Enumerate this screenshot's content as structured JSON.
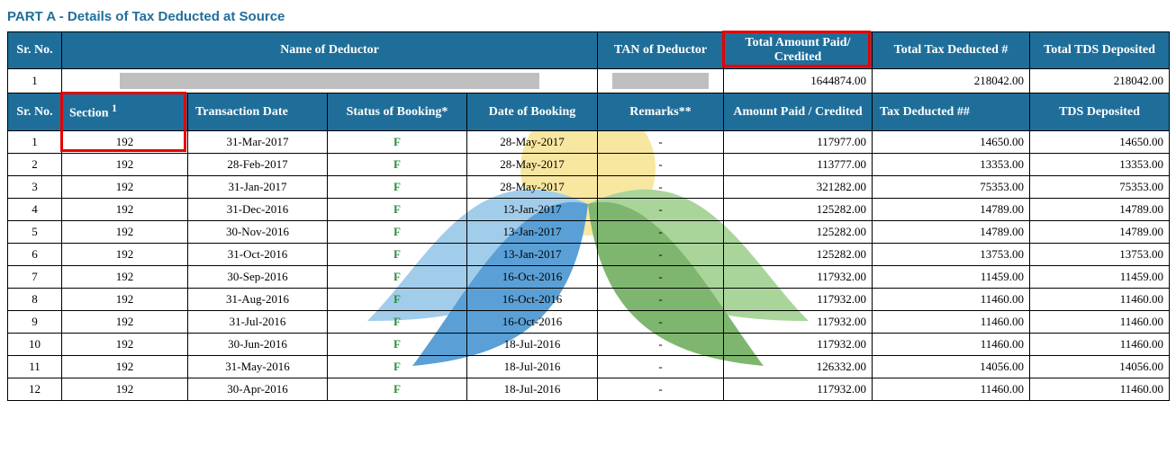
{
  "title": "PART A - Details of Tax Deducted at Source",
  "title_color": "#1f6e9a",
  "header_bg": "#1f6e9a",
  "status_color": "#2a8f3a",
  "redact_color": "#bfbfbf",
  "red_highlight": "#e60000",
  "summary_headers": {
    "sr": "Sr. No.",
    "name": "Name of Deductor",
    "tan": "TAN of Deductor",
    "total_paid": "Total Amount Paid/ Credited",
    "total_ded": "Total Tax Deducted #",
    "total_dep": "Total TDS Deposited"
  },
  "summary_rows": [
    {
      "sr": "1",
      "total_paid": "1644874.00",
      "total_ded": "218042.00",
      "total_dep": "218042.00"
    }
  ],
  "detail_headers": {
    "sr": "Sr. No.",
    "section": "Section ",
    "section_sup": "1",
    "trans_date": "Transaction Date",
    "status": "Status of Booking*",
    "book_date": "Date of Booking",
    "remarks": "Remarks**",
    "amount": "Amount Paid / Credited",
    "tax": "Tax Deducted ##",
    "dep": "TDS Deposited"
  },
  "rows": [
    {
      "sr": "1",
      "section": "192",
      "trans_date": "31-Mar-2017",
      "status": "F",
      "book_date": "28-May-2017",
      "remarks": "-",
      "amount": "117977.00",
      "tax": "14650.00",
      "dep": "14650.00"
    },
    {
      "sr": "2",
      "section": "192",
      "trans_date": "28-Feb-2017",
      "status": "F",
      "book_date": "28-May-2017",
      "remarks": "-",
      "amount": "113777.00",
      "tax": "13353.00",
      "dep": "13353.00"
    },
    {
      "sr": "3",
      "section": "192",
      "trans_date": "31-Jan-2017",
      "status": "F",
      "book_date": "28-May-2017",
      "remarks": "-",
      "amount": "321282.00",
      "tax": "75353.00",
      "dep": "75353.00"
    },
    {
      "sr": "4",
      "section": "192",
      "trans_date": "31-Dec-2016",
      "status": "F",
      "book_date": "13-Jan-2017",
      "remarks": "-",
      "amount": "125282.00",
      "tax": "14789.00",
      "dep": "14789.00"
    },
    {
      "sr": "5",
      "section": "192",
      "trans_date": "30-Nov-2016",
      "status": "F",
      "book_date": "13-Jan-2017",
      "remarks": "-",
      "amount": "125282.00",
      "tax": "14789.00",
      "dep": "14789.00"
    },
    {
      "sr": "6",
      "section": "192",
      "trans_date": "31-Oct-2016",
      "status": "F",
      "book_date": "13-Jan-2017",
      "remarks": "-",
      "amount": "125282.00",
      "tax": "13753.00",
      "dep": "13753.00"
    },
    {
      "sr": "7",
      "section": "192",
      "trans_date": "30-Sep-2016",
      "status": "F",
      "book_date": "16-Oct-2016",
      "remarks": "-",
      "amount": "117932.00",
      "tax": "11459.00",
      "dep": "11459.00"
    },
    {
      "sr": "8",
      "section": "192",
      "trans_date": "31-Aug-2016",
      "status": "F",
      "book_date": "16-Oct-2016",
      "remarks": "-",
      "amount": "117932.00",
      "tax": "11460.00",
      "dep": "11460.00"
    },
    {
      "sr": "9",
      "section": "192",
      "trans_date": "31-Jul-2016",
      "status": "F",
      "book_date": "16-Oct-2016",
      "remarks": "-",
      "amount": "117932.00",
      "tax": "11460.00",
      "dep": "11460.00"
    },
    {
      "sr": "10",
      "section": "192",
      "trans_date": "30-Jun-2016",
      "status": "F",
      "book_date": "18-Jul-2016",
      "remarks": "-",
      "amount": "117932.00",
      "tax": "11460.00",
      "dep": "11460.00"
    },
    {
      "sr": "11",
      "section": "192",
      "trans_date": "31-May-2016",
      "status": "F",
      "book_date": "18-Jul-2016",
      "remarks": "-",
      "amount": "126332.00",
      "tax": "14056.00",
      "dep": "14056.00"
    },
    {
      "sr": "12",
      "section": "192",
      "trans_date": "30-Apr-2016",
      "status": "F",
      "book_date": "18-Jul-2016",
      "remarks": "-",
      "amount": "117932.00",
      "tax": "11460.00",
      "dep": "11460.00"
    }
  ],
  "watermark": {
    "circle": "#f7e7a0",
    "leaf_green_dark": "#7fb66f",
    "leaf_green_light": "#a9d59b",
    "leaf_blue_dark": "#5aa0d6",
    "leaf_blue_light": "#a1ccea"
  }
}
